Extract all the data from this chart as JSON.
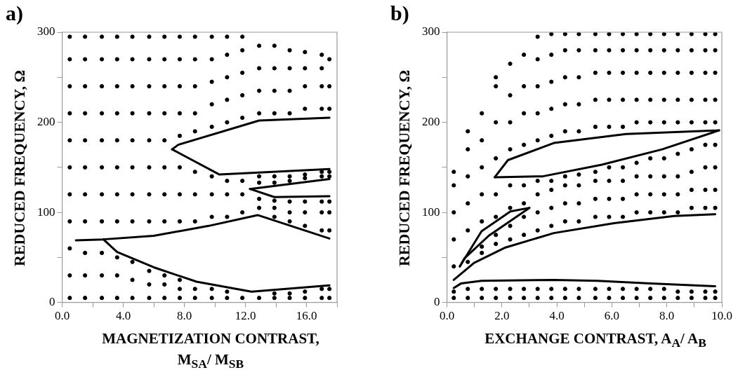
{
  "chart_data": [
    {
      "type": "scatter",
      "title": "a)",
      "xlabel": "MAGNETIZATION CONTRAST, M$_{SA}$/ M$_{SB}$",
      "ylabel": "REDUCED FREQUENCY, Ω",
      "xlim": [
        0,
        18
      ],
      "ylim": [
        0,
        300
      ],
      "xticks": [
        {
          "value": 0,
          "label": "0.0"
        },
        {
          "value": 2,
          "label": null
        },
        {
          "value": 4,
          "label": "4.0"
        },
        {
          "value": 6,
          "label": null
        },
        {
          "value": 8,
          "label": "8.0"
        },
        {
          "value": 10,
          "label": null
        },
        {
          "value": 12,
          "label": "12.0"
        },
        {
          "value": 14,
          "label": null
        },
        {
          "value": 16,
          "label": "16.0"
        },
        {
          "value": 18,
          "label": null
        }
      ],
      "yticks": [
        0,
        {
          "value": 50,
          "label": null
        },
        100,
        {
          "value": 150,
          "label": null
        },
        200,
        {
          "value": 250,
          "label": null
        },
        300
      ],
      "grid": false,
      "legend": false,
      "line_style": "solid",
      "series": [
        {
          "type": "scatter",
          "marker": "circle",
          "color": "#000000",
          "x": [
            0.5,
            0.5,
            0.5,
            0.5,
            0.5,
            0.5,
            0.5,
            0.5,
            0.5,
            0.5,
            0.5,
            1.5,
            1.5,
            1.5,
            1.5,
            1.5,
            1.5,
            1.5,
            1.5,
            1.5,
            1.5,
            1.5,
            2.6,
            2.6,
            2.6,
            2.6,
            2.6,
            2.6,
            2.6,
            2.6,
            2.6,
            2.6,
            2.6,
            3.6,
            3.6,
            3.6,
            3.6,
            3.6,
            3.6,
            3.6,
            3.6,
            3.6,
            3.6,
            3.6,
            4.6,
            4.6,
            4.6,
            4.6,
            4.6,
            4.6,
            4.6,
            4.6,
            4.6,
            4.6,
            4.6,
            5.7,
            5.7,
            5.7,
            5.7,
            5.7,
            5.7,
            5.7,
            5.7,
            5.7,
            5.7,
            5.7,
            6.7,
            6.7,
            6.7,
            6.7,
            6.7,
            6.7,
            6.7,
            6.7,
            6.7,
            6.7,
            6.7,
            7.7,
            7.7,
            7.7,
            7.7,
            7.7,
            7.7,
            7.7,
            7.7,
            7.7,
            7.7,
            7.7,
            8.7,
            8.7,
            8.7,
            8.7,
            8.7,
            8.7,
            8.7,
            8.7,
            8.7,
            8.7,
            9.8,
            9.8,
            9.8,
            9.8,
            9.8,
            9.8,
            9.8,
            9.8,
            9.8,
            9.8,
            10.8,
            10.8,
            10.8,
            10.8,
            10.8,
            10.8,
            10.8,
            10.8,
            10.8,
            10.8,
            11.8,
            11.8,
            11.8,
            11.8,
            11.8,
            11.8,
            11.8,
            11.8,
            11.8,
            12.9,
            12.9,
            12.9,
            12.9,
            12.9,
            12.9,
            12.9,
            12.9,
            12.9,
            13.9,
            13.9,
            13.9,
            13.9,
            13.9,
            13.9,
            13.9,
            13.9,
            13.9,
            13.9,
            13.9,
            14.9,
            14.9,
            14.9,
            14.9,
            14.9,
            14.9,
            14.9,
            14.9,
            14.9,
            14.9,
            14.9,
            15.9,
            15.9,
            15.9,
            15.9,
            15.9,
            15.9,
            15.9,
            15.9,
            15.9,
            15.9,
            15.9,
            17.0,
            17.0,
            17.0,
            17.0,
            17.0,
            17.0,
            17.0,
            17.0,
            17.0,
            17.0,
            17.0,
            17.5,
            17.5,
            17.5,
            17.5,
            17.5,
            17.5,
            17.5,
            17.5,
            17.5,
            17.5
          ],
          "values": [
            5,
            30,
            60,
            90,
            120,
            150,
            180,
            210,
            240,
            270,
            295,
            5,
            30,
            55,
            90,
            120,
            150,
            180,
            210,
            240,
            270,
            295,
            5,
            30,
            55,
            90,
            120,
            150,
            180,
            210,
            240,
            270,
            295,
            5,
            30,
            50,
            90,
            120,
            150,
            180,
            210,
            240,
            270,
            295,
            5,
            25,
            45,
            90,
            120,
            150,
            180,
            210,
            240,
            270,
            295,
            5,
            20,
            35,
            90,
            120,
            150,
            180,
            210,
            240,
            270,
            295,
            5,
            20,
            30,
            90,
            120,
            150,
            180,
            210,
            240,
            270,
            295,
            5,
            15,
            25,
            90,
            120,
            150,
            185,
            210,
            240,
            270,
            295,
            5,
            15,
            90,
            120,
            145,
            190,
            210,
            240,
            270,
            295,
            5,
            15,
            95,
            120,
            140,
            195,
            220,
            245,
            270,
            295,
            5,
            12,
            95,
            120,
            135,
            200,
            225,
            250,
            275,
            295,
            5,
            100,
            120,
            135,
            205,
            230,
            255,
            280,
            295,
            5,
            105,
            115,
            133,
            140,
            210,
            235,
            260,
            285,
            5,
            10,
            95,
            105,
            113,
            133,
            140,
            210,
            235,
            260,
            285,
            5,
            10,
            90,
            100,
            112,
            135,
            140,
            210,
            235,
            260,
            280,
            5,
            12,
            85,
            100,
            112,
            138,
            142,
            215,
            240,
            260,
            278,
            5,
            15,
            80,
            100,
            112,
            140,
            145,
            215,
            240,
            260,
            275,
            5,
            15,
            80,
            100,
            112,
            140,
            145,
            215,
            240,
            270
          ]
        },
        {
          "type": "line",
          "color": "#000000",
          "x": [
            7.2,
            7.6,
            12.9,
            17.5
          ],
          "values": [
            170,
            175,
            202,
            205
          ]
        },
        {
          "type": "line",
          "color": "#000000",
          "x": [
            7.2,
            10.3,
            17.5
          ],
          "values": [
            170,
            142,
            148
          ]
        },
        {
          "type": "line",
          "color": "#000000",
          "x": [
            12.3,
            17.5
          ],
          "values": [
            126,
            137
          ]
        },
        {
          "type": "line",
          "color": "#000000",
          "x": [
            12.3,
            13.9,
            17.5
          ],
          "values": [
            126,
            117,
            118
          ]
        },
        {
          "type": "line",
          "color": "#000000",
          "x": [
            0.9,
            2.7,
            6.0,
            9.6,
            12.8,
            17.5
          ],
          "values": [
            69,
            70,
            74,
            85,
            97,
            71
          ]
        },
        {
          "type": "line",
          "color": "#000000",
          "x": [
            2.7,
            3.6,
            6.0,
            8.8,
            12.4,
            17.5
          ],
          "values": [
            70,
            56,
            39,
            23,
            12,
            19
          ]
        }
      ]
    },
    {
      "type": "scatter",
      "title": "b)",
      "xlabel": "EXCHANGE CONTRAST,  A$_{A}$/ A$_{B}$",
      "ylabel": "REDUCED FREQUENCY, Ω",
      "xlim": [
        0,
        10
      ],
      "ylim": [
        0,
        300
      ],
      "xticks": [
        {
          "value": 0,
          "label": "0.0"
        },
        {
          "value": 1,
          "label": null
        },
        {
          "value": 2,
          "label": "2.0"
        },
        {
          "value": 3,
          "label": null
        },
        {
          "value": 4,
          "label": "4.0"
        },
        {
          "value": 5,
          "label": null
        },
        {
          "value": 6,
          "label": "6.0"
        },
        {
          "value": 7,
          "label": null
        },
        {
          "value": 8,
          "label": "8.0"
        },
        {
          "value": 9,
          "label": null
        },
        {
          "value": 10,
          "label": "10.0"
        }
      ],
      "yticks": [
        0,
        {
          "value": 50,
          "label": null
        },
        100,
        {
          "value": 150,
          "label": null
        },
        200,
        {
          "value": 250,
          "label": null
        },
        300
      ],
      "grid": false,
      "legend": false,
      "line_style": "solid",
      "series": [
        {
          "type": "scatter",
          "marker": "circle",
          "color": "#000000",
          "x": [
            0.25,
            0.25,
            0.25,
            0.25,
            0.25,
            0.25,
            0.25,
            0.76,
            0.76,
            0.76,
            0.76,
            0.76,
            0.76,
            0.76,
            0.76,
            1.27,
            1.27,
            1.27,
            1.27,
            1.27,
            1.27,
            1.27,
            1.27,
            1.27,
            1.78,
            1.78,
            1.78,
            1.78,
            1.78,
            1.78,
            1.78,
            1.78,
            1.78,
            1.78,
            2.3,
            2.3,
            2.3,
            2.3,
            2.3,
            2.3,
            2.3,
            2.3,
            2.3,
            2.3,
            2.8,
            2.8,
            2.8,
            2.8,
            2.8,
            2.8,
            2.8,
            2.8,
            2.8,
            2.8,
            3.3,
            3.3,
            3.3,
            3.3,
            3.3,
            3.3,
            3.3,
            3.3,
            3.3,
            3.3,
            3.3,
            3.8,
            3.8,
            3.8,
            3.8,
            3.8,
            3.8,
            3.8,
            3.8,
            3.8,
            3.8,
            3.8,
            4.3,
            4.3,
            4.3,
            4.3,
            4.3,
            4.3,
            4.3,
            4.3,
            4.3,
            4.3,
            4.3,
            4.8,
            4.8,
            4.8,
            4.8,
            4.8,
            4.8,
            4.8,
            4.8,
            4.8,
            4.8,
            4.8,
            5.4,
            5.4,
            5.4,
            5.4,
            5.4,
            5.4,
            5.4,
            5.4,
            5.4,
            5.4,
            5.4,
            5.9,
            5.9,
            5.9,
            5.9,
            5.9,
            5.9,
            5.9,
            5.9,
            5.9,
            5.9,
            5.9,
            6.4,
            6.4,
            6.4,
            6.4,
            6.4,
            6.4,
            6.4,
            6.4,
            6.4,
            6.4,
            6.4,
            6.9,
            6.9,
            6.9,
            6.9,
            6.9,
            6.9,
            6.9,
            6.9,
            6.9,
            6.9,
            6.9,
            7.4,
            7.4,
            7.4,
            7.4,
            7.4,
            7.4,
            7.4,
            7.4,
            7.4,
            7.4,
            7.4,
            7.9,
            7.9,
            7.9,
            7.9,
            7.9,
            7.9,
            7.9,
            7.9,
            7.9,
            7.9,
            7.9,
            8.4,
            8.4,
            8.4,
            8.4,
            8.4,
            8.4,
            8.4,
            8.4,
            8.4,
            8.4,
            8.4,
            8.9,
            8.9,
            8.9,
            8.9,
            8.9,
            8.9,
            8.9,
            8.9,
            8.9,
            8.9,
            8.9,
            9.4,
            9.4,
            9.4,
            9.4,
            9.4,
            9.4,
            9.4,
            9.4,
            9.4,
            9.4,
            9.4,
            9.76,
            9.76,
            9.76,
            9.76,
            9.76,
            9.76,
            9.76,
            9.76,
            9.76,
            9.76,
            9.76
          ],
          "values": [
            5,
            12,
            40,
            70,
            100,
            130,
            145,
            5,
            15,
            45,
            80,
            110,
            140,
            170,
            190,
            5,
            15,
            55,
            62,
            90,
            120,
            150,
            180,
            210,
            5,
            15,
            65,
            75,
            95,
            120,
            160,
            200,
            240,
            250,
            5,
            15,
            70,
            85,
            105,
            130,
            170,
            200,
            230,
            265,
            5,
            15,
            75,
            95,
            110,
            130,
            175,
            210,
            240,
            275,
            5,
            15,
            80,
            100,
            120,
            135,
            180,
            210,
            240,
            270,
            295,
            5,
            15,
            85,
            105,
            125,
            135,
            185,
            215,
            245,
            275,
            298,
            5,
            15,
            90,
            110,
            130,
            140,
            190,
            220,
            250,
            280,
            298,
            5,
            15,
            90,
            110,
            130,
            142,
            190,
            220,
            250,
            280,
            298,
            5,
            15,
            95,
            115,
            135,
            145,
            195,
            225,
            255,
            280,
            298,
            5,
            15,
            95,
            115,
            135,
            150,
            195,
            225,
            255,
            280,
            298,
            5,
            15,
            95,
            115,
            135,
            150,
            195,
            225,
            255,
            280,
            298,
            5,
            15,
            100,
            120,
            140,
            155,
            200,
            225,
            255,
            280,
            298,
            5,
            15,
            100,
            120,
            140,
            160,
            200,
            225,
            255,
            280,
            298,
            5,
            15,
            100,
            120,
            140,
            160,
            200,
            225,
            255,
            280,
            298,
            5,
            12,
            100,
            120,
            140,
            165,
            200,
            225,
            255,
            280,
            298,
            5,
            12,
            105,
            125,
            145,
            170,
            200,
            225,
            255,
            280,
            298,
            5,
            12,
            105,
            125,
            150,
            175,
            200,
            225,
            255,
            280,
            298,
            5,
            12,
            105,
            125,
            150,
            175,
            200,
            225,
            255,
            280,
            298
          ]
        },
        {
          "type": "line",
          "color": "#000000",
          "x": [
            0.25,
            0.51,
            1.26,
            3.89,
            5.47,
            7.4,
            9.76
          ],
          "values": [
            16,
            21,
            24,
            25,
            24,
            21,
            18
          ]
        },
        {
          "type": "line",
          "color": "#000000",
          "x": [
            0.25,
            0.99,
            2.13,
            3.89,
            6.08,
            8.27,
            9.76
          ],
          "values": [
            25,
            44,
            61,
            77,
            88,
            96,
            98
          ]
        },
        {
          "type": "line",
          "color": "#000000",
          "x": [
            0.47,
            1.26,
            2.31,
            3.0
          ],
          "values": [
            40,
            79,
            101,
            105
          ]
        },
        {
          "type": "line",
          "color": "#000000",
          "x": [
            0.47,
            0.64,
            1.52,
            3.0
          ],
          "values": [
            40,
            49,
            74,
            105
          ]
        },
        {
          "type": "line",
          "color": "#000000",
          "x": [
            1.74,
            2.22,
            3.89,
            6.52,
            9.9
          ],
          "values": [
            139,
            158,
            177,
            187,
            191
          ]
        },
        {
          "type": "line",
          "color": "#000000",
          "x": [
            1.74,
            3.49,
            5.64,
            7.83,
            9.9
          ],
          "values": [
            139,
            140,
            153,
            170,
            191
          ]
        }
      ]
    }
  ]
}
